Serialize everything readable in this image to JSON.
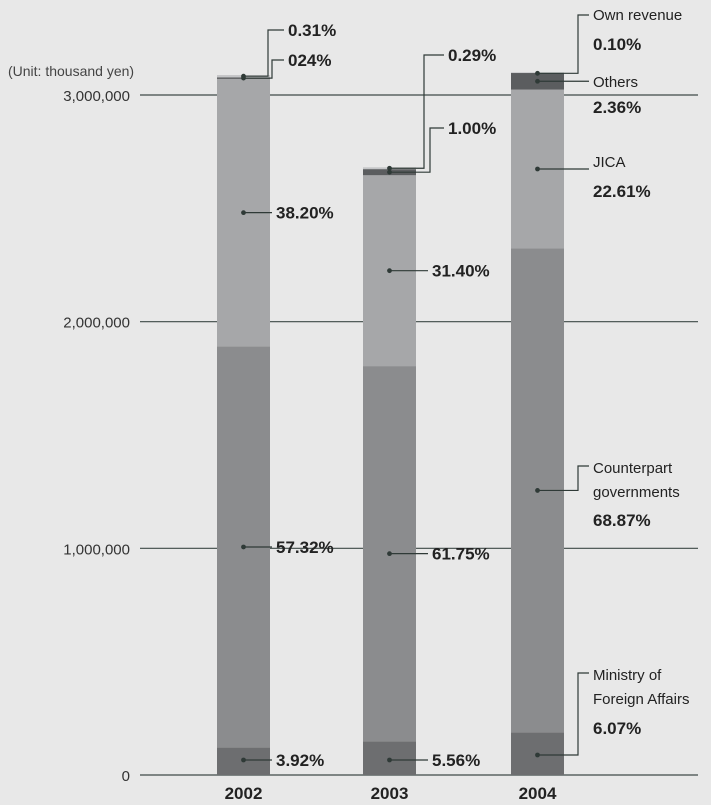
{
  "chart_data": {
    "type": "bar",
    "stacked": true,
    "unit_label": "(Unit: thousand yen)",
    "categories": [
      "2002",
      "2003",
      "2004"
    ],
    "ylim": [
      0,
      3000000
    ],
    "y_ticks": [
      "0",
      "1,000,000",
      "2,000,000",
      "3,000,000"
    ],
    "grid": true,
    "series": [
      {
        "name": "Ministry of Foreign Affairs",
        "color": "#6d6e70",
        "values": [
          121000,
          149000,
          188000
        ],
        "labels": [
          "3.92%",
          "5.56%",
          "6.07%"
        ]
      },
      {
        "name": "Counterpart governments",
        "color": "#8b8c8e",
        "values": [
          1770000,
          1655000,
          2135000
        ],
        "labels": [
          "57.32%",
          "61.75%",
          "68.87%"
        ]
      },
      {
        "name": "JICA",
        "color": "#a6a7a9",
        "values": [
          1180000,
          842000,
          701000
        ],
        "labels": [
          "38.20%",
          "31.40%",
          "22.61%"
        ]
      },
      {
        "name": "Others",
        "color": "#5b5d5f",
        "values": [
          7000,
          27000,
          73000
        ],
        "labels": [
          "024%",
          "1.00%",
          "2.36%"
        ]
      },
      {
        "name": "Own revenue",
        "color": "#c4c5c7",
        "values": [
          10000,
          8000,
          3000
        ],
        "labels": [
          "0.31%",
          "0.29%",
          "0.10%"
        ]
      }
    ]
  }
}
